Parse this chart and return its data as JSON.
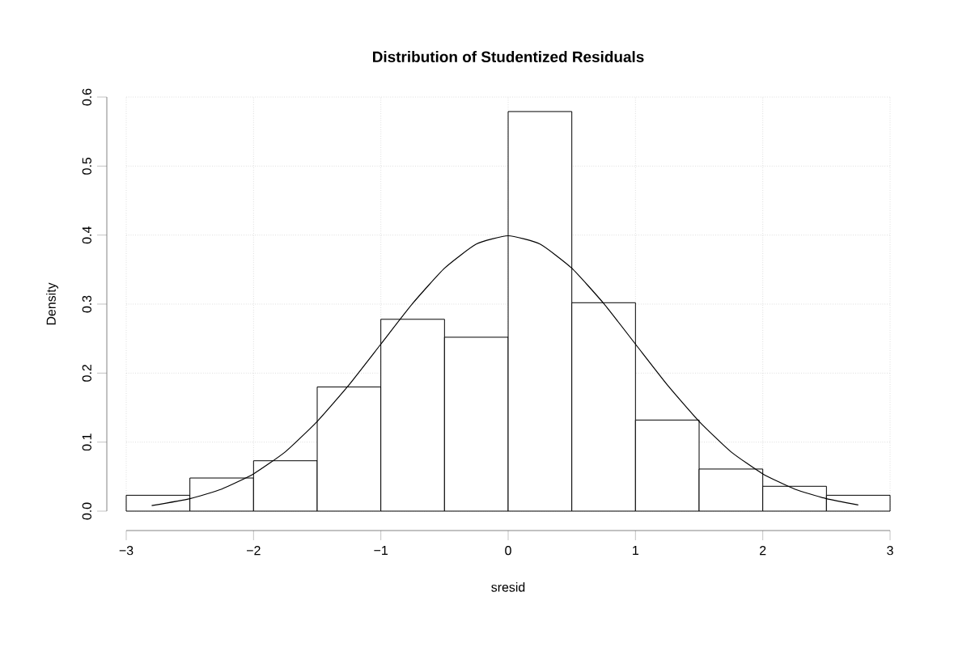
{
  "chart_data": {
    "type": "histogram",
    "title": "Distribution of Studentized Residuals",
    "xlabel": "sresid",
    "ylabel": "Density",
    "bins": [
      -3,
      -2.5,
      -2,
      -1.5,
      -1,
      -0.5,
      0,
      0.5,
      1,
      1.5,
      2,
      2.5,
      3
    ],
    "values": [
      0.023,
      0.048,
      0.073,
      0.18,
      0.278,
      0.252,
      0.579,
      0.302,
      0.132,
      0.061,
      0.036,
      0.023
    ],
    "color": "#ffffff",
    "series": [
      {
        "type": "line",
        "color": "#000000",
        "x": [
          -2.8,
          -2.5,
          -2.25,
          -2,
          -1.75,
          -1.5,
          -1.25,
          -1,
          -0.75,
          -0.5,
          -0.25,
          0,
          0.25,
          0.5,
          0.75,
          1,
          1.25,
          1.5,
          1.75,
          2,
          2.25,
          2.5,
          2.75
        ],
        "values": [
          0.008,
          0.018,
          0.032,
          0.054,
          0.086,
          0.13,
          0.183,
          0.242,
          0.301,
          0.352,
          0.387,
          0.399,
          0.387,
          0.352,
          0.301,
          0.242,
          0.183,
          0.13,
          0.086,
          0.054,
          0.032,
          0.018,
          0.009
        ]
      }
    ],
    "xlim": [
      -3,
      3
    ],
    "ylim": [
      0,
      0.6
    ],
    "xticks": [
      {
        "value": -3,
        "label": "−3"
      },
      {
        "value": -2,
        "label": "−2"
      },
      {
        "value": -1,
        "label": "−1"
      },
      0,
      1,
      2,
      3
    ],
    "yticks": [
      {
        "value": 0,
        "label": "0.0"
      },
      0.1,
      0.2,
      0.3,
      0.4,
      0.5,
      0.6
    ],
    "grid": true
  }
}
